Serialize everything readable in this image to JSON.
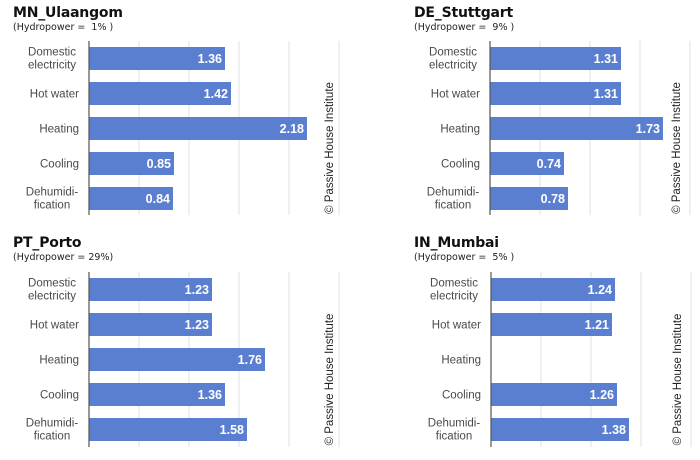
{
  "chart_data": [
    {
      "type": "bar",
      "orientation": "horizontal",
      "title": "MN_Ulaangom",
      "subtitle": "(Hydropower =  1% )",
      "categories": [
        "Domestic electricity",
        "Hot water",
        "Heating",
        "Cooling",
        "Dehumidification"
      ],
      "category_lines": [
        [
          "Domestic",
          "electricity"
        ],
        [
          "Hot water"
        ],
        [
          "Heating"
        ],
        [
          "Cooling"
        ],
        [
          "Dehumidi-",
          "fication"
        ]
      ],
      "values": [
        1.36,
        1.42,
        2.18,
        0.85,
        0.84
      ],
      "value_labels": [
        "1.36",
        "1.42",
        "2.18",
        "0.85",
        "0.84"
      ],
      "xlim": [
        0,
        2.5
      ],
      "grid_step": 0.5,
      "grid": true,
      "watermark": "© Passive House Institute"
    },
    {
      "type": "bar",
      "orientation": "horizontal",
      "title": "DE_Stuttgart",
      "subtitle": "(Hydropower =  9% )",
      "categories": [
        "Domestic electricity",
        "Hot water",
        "Heating",
        "Cooling",
        "Dehumidification"
      ],
      "category_lines": [
        [
          "Domestic",
          "electricity"
        ],
        [
          "Hot water"
        ],
        [
          "Heating"
        ],
        [
          "Cooling"
        ],
        [
          "Dehumidi-",
          "fication"
        ]
      ],
      "values": [
        1.31,
        1.31,
        1.73,
        0.74,
        0.78
      ],
      "value_labels": [
        "1.31",
        "1.31",
        "1.73",
        "0.74",
        "0.78"
      ],
      "xlim": [
        0,
        2.0
      ],
      "grid_step": 0.5,
      "grid": true,
      "watermark": "© Passive House Institute"
    },
    {
      "type": "bar",
      "orientation": "horizontal",
      "title": "PT_Porto",
      "subtitle": "(Hydropower = 29%)",
      "categories": [
        "Domestic electricity",
        "Hot water",
        "Heating",
        "Cooling",
        "Dehumidification"
      ],
      "category_lines": [
        [
          "Domestic",
          "electricity"
        ],
        [
          "Hot water"
        ],
        [
          "Heating"
        ],
        [
          "Cooling"
        ],
        [
          "Dehumidi-",
          "fication"
        ]
      ],
      "values": [
        1.23,
        1.23,
        1.76,
        1.36,
        1.58
      ],
      "value_labels": [
        "1.23",
        "1.23",
        "1.76",
        "1.36",
        "1.58"
      ],
      "xlim": [
        0,
        2.5
      ],
      "grid_step": 0.5,
      "grid": true,
      "watermark": "© Passive House Institute"
    },
    {
      "type": "bar",
      "orientation": "horizontal",
      "title": "IN_Mumbai",
      "subtitle": "(Hydropower =  5% )",
      "categories": [
        "Domestic electricity",
        "Hot water",
        "Heating",
        "Cooling",
        "Dehumidification"
      ],
      "category_lines": [
        [
          "Domestic",
          "electricity"
        ],
        [
          "Hot water"
        ],
        [
          "Heating"
        ],
        [
          "Cooling"
        ],
        [
          "Dehumidi-",
          "fication"
        ]
      ],
      "values": [
        1.24,
        1.21,
        null,
        1.26,
        1.38
      ],
      "value_labels": [
        "1.24",
        "1.21",
        "",
        "1.26",
        "1.38"
      ],
      "xlim": [
        0,
        2.0
      ],
      "grid_step": 0.5,
      "grid": true,
      "watermark": "© Passive House Institute"
    }
  ],
  "colors": {
    "bar": "#5b7fd0",
    "grid": "#e2e2e2",
    "axis": "#555555",
    "category_text": "#4a4a4a",
    "value_text": "#ffffff"
  }
}
